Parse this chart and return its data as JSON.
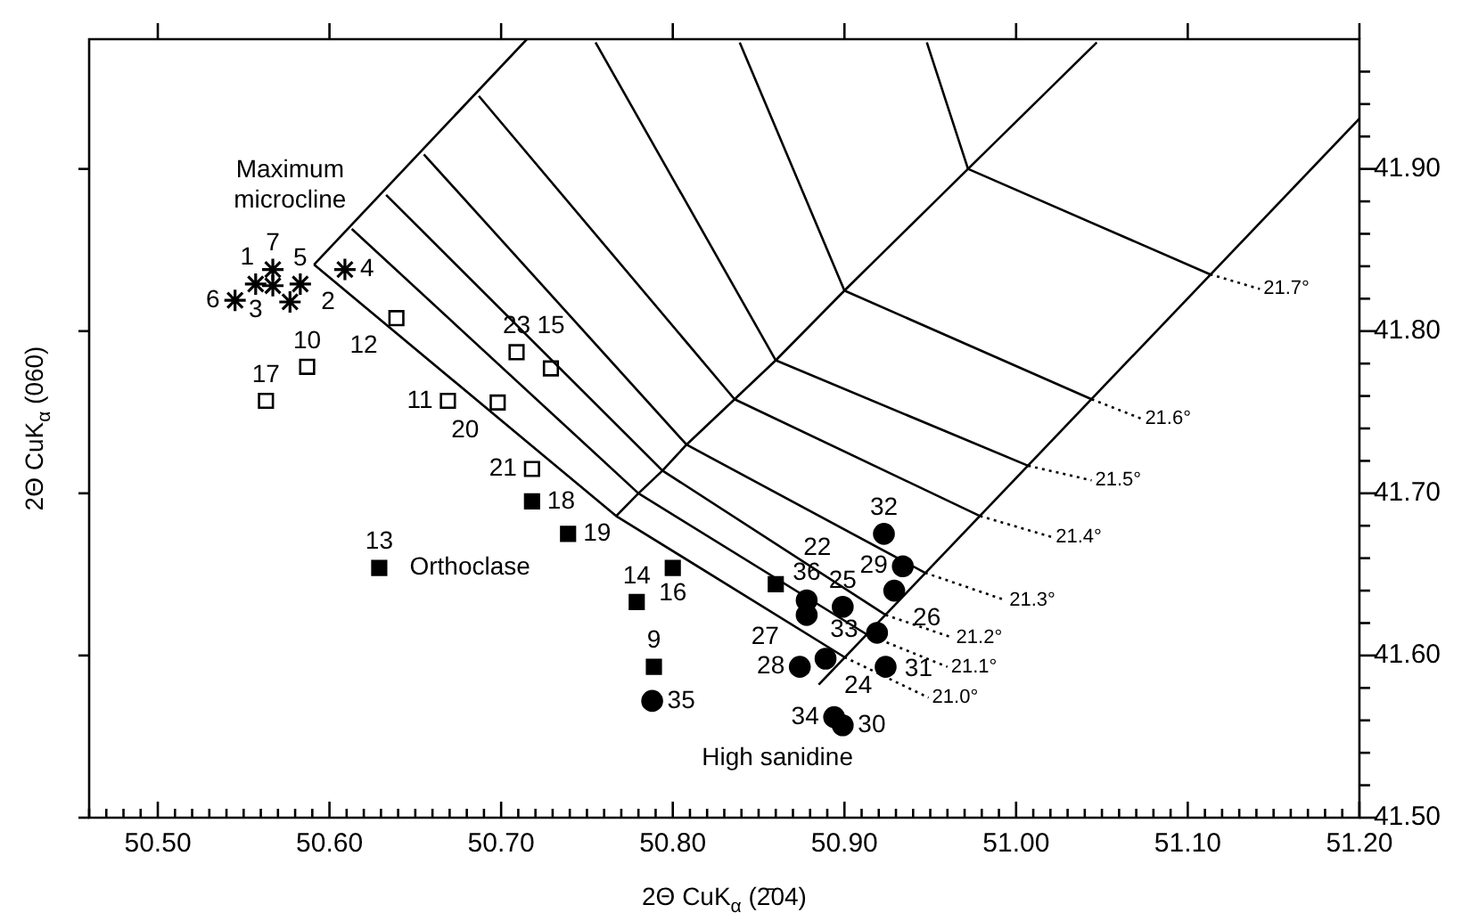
{
  "chart_data": {
    "type": "scatter",
    "xlabel": "2Θ CuK$_{α}$ (2̄04)",
    "ylabel": "2Θ CuK$_{α}$ (060)",
    "xlim": [
      50.46,
      51.2
    ],
    "ylim": [
      41.5,
      41.98
    ],
    "xticks": [
      {
        "value": 50.46,
        "label": null
      },
      {
        "value": 50.47,
        "label": null
      },
      {
        "value": 50.48,
        "label": null
      },
      {
        "value": 50.49,
        "label": null
      },
      {
        "value": 50.5,
        "label": "50.50"
      },
      {
        "value": 50.51,
        "label": null
      },
      {
        "value": 50.52,
        "label": null
      },
      {
        "value": 50.53,
        "label": null
      },
      {
        "value": 50.54,
        "label": null
      },
      {
        "value": 50.55,
        "label": null
      },
      {
        "value": 50.56,
        "label": null
      },
      {
        "value": 50.57,
        "label": null
      },
      {
        "value": 50.58,
        "label": null
      },
      {
        "value": 50.59,
        "label": null
      },
      {
        "value": 50.6,
        "label": "50.60"
      },
      {
        "value": 50.61,
        "label": null
      },
      {
        "value": 50.62,
        "label": null
      },
      {
        "value": 50.63,
        "label": null
      },
      {
        "value": 50.64,
        "label": null
      },
      {
        "value": 50.65,
        "label": null
      },
      {
        "value": 50.66,
        "label": null
      },
      {
        "value": 50.67,
        "label": null
      },
      {
        "value": 50.68,
        "label": null
      },
      {
        "value": 50.69,
        "label": null
      },
      {
        "value": 50.7,
        "label": "50.70"
      },
      {
        "value": 50.71,
        "label": null
      },
      {
        "value": 50.72,
        "label": null
      },
      {
        "value": 50.73,
        "label": null
      },
      {
        "value": 50.74,
        "label": null
      },
      {
        "value": 50.75,
        "label": null
      },
      {
        "value": 50.76,
        "label": null
      },
      {
        "value": 50.77,
        "label": null
      },
      {
        "value": 50.78,
        "label": null
      },
      {
        "value": 50.79,
        "label": null
      },
      {
        "value": 50.8,
        "label": "50.80"
      },
      {
        "value": 50.81,
        "label": null
      },
      {
        "value": 50.82,
        "label": null
      },
      {
        "value": 50.83,
        "label": null
      },
      {
        "value": 50.84,
        "label": null
      },
      {
        "value": 50.85,
        "label": null
      },
      {
        "value": 50.86,
        "label": null
      },
      {
        "value": 50.87,
        "label": null
      },
      {
        "value": 50.88,
        "label": null
      },
      {
        "value": 50.89,
        "label": null
      },
      {
        "value": 50.9,
        "label": "50.90"
      },
      {
        "value": 50.91,
        "label": null
      },
      {
        "value": 50.92,
        "label": null
      },
      {
        "value": 50.93,
        "label": null
      },
      {
        "value": 50.94,
        "label": null
      },
      {
        "value": 50.95,
        "label": null
      },
      {
        "value": 50.96,
        "label": null
      },
      {
        "value": 50.97,
        "label": null
      },
      {
        "value": 50.98,
        "label": null
      },
      {
        "value": 50.99,
        "label": null
      },
      {
        "value": 51.0,
        "label": "51.00"
      },
      {
        "value": 51.01,
        "label": null
      },
      {
        "value": 51.02,
        "label": null
      },
      {
        "value": 51.03,
        "label": null
      },
      {
        "value": 51.04,
        "label": null
      },
      {
        "value": 51.05,
        "label": null
      },
      {
        "value": 51.06,
        "label": null
      },
      {
        "value": 51.07,
        "label": null
      },
      {
        "value": 51.08,
        "label": null
      },
      {
        "value": 51.09,
        "label": null
      },
      {
        "value": 51.1,
        "label": "51.10"
      },
      {
        "value": 51.11,
        "label": null
      },
      {
        "value": 51.12,
        "label": null
      },
      {
        "value": 51.13,
        "label": null
      },
      {
        "value": 51.14,
        "label": null
      },
      {
        "value": 51.15,
        "label": null
      },
      {
        "value": 51.16,
        "label": null
      },
      {
        "value": 51.17,
        "label": null
      },
      {
        "value": 51.18,
        "label": null
      },
      {
        "value": 51.19,
        "label": null
      },
      {
        "value": 51.2,
        "label": "51.20"
      }
    ],
    "yticks": [
      {
        "value": 41.5,
        "label": "41.50"
      },
      {
        "value": 41.52,
        "label": null
      },
      {
        "value": 41.54,
        "label": null
      },
      {
        "value": 41.56,
        "label": null
      },
      {
        "value": 41.58,
        "label": null
      },
      {
        "value": 41.6,
        "label": "41.60"
      },
      {
        "value": 41.62,
        "label": null
      },
      {
        "value": 41.64,
        "label": null
      },
      {
        "value": 41.66,
        "label": null
      },
      {
        "value": 41.68,
        "label": null
      },
      {
        "value": 41.7,
        "label": "41.70"
      },
      {
        "value": 41.72,
        "label": null
      },
      {
        "value": 41.74,
        "label": null
      },
      {
        "value": 41.76,
        "label": null
      },
      {
        "value": 41.78,
        "label": null
      },
      {
        "value": 41.8,
        "label": "41.80"
      },
      {
        "value": 41.82,
        "label": null
      },
      {
        "value": 41.84,
        "label": null
      },
      {
        "value": 41.86,
        "label": null
      },
      {
        "value": 41.88,
        "label": null
      },
      {
        "value": 41.9,
        "label": "41.90"
      },
      {
        "value": 41.92,
        "label": null
      },
      {
        "value": 41.94,
        "label": null
      },
      {
        "value": 41.96,
        "label": null
      }
    ],
    "series": [
      {
        "type": "line",
        "color": "#000000",
        "x": [
          50.715,
          50.591
        ],
        "values": [
          41.98,
          41.841
        ]
      },
      {
        "type": "line",
        "color": "#000000",
        "x": [
          50.767,
          50.78,
          50.794,
          50.808,
          50.836,
          50.86,
          50.9,
          50.972,
          51.047
        ],
        "values": [
          41.686,
          41.7,
          41.714,
          41.73,
          41.758,
          41.782,
          41.825,
          41.9,
          41.978
        ]
      },
      {
        "type": "line",
        "color": "#000000",
        "x": [
          50.885,
          51.2
        ],
        "values": [
          41.582,
          41.931
        ]
      },
      {
        "type": "line",
        "color": "#000000",
        "x": [
          50.948,
          50.972,
          51.113
        ],
        "values": [
          41.978,
          41.9,
          41.835
        ]
      },
      {
        "type": "line",
        "color": "#000000",
        "x": [
          50.839,
          50.9,
          51.044
        ],
        "values": [
          41.978,
          41.825,
          41.758
        ]
      },
      {
        "type": "line",
        "color": "#000000",
        "x": [
          50.755,
          50.86,
          51.007
        ],
        "values": [
          41.978,
          41.782,
          41.717
        ]
      },
      {
        "type": "line",
        "color": "#000000",
        "x": [
          50.687,
          50.836,
          50.979
        ],
        "values": [
          41.945,
          41.758,
          41.686
        ]
      },
      {
        "type": "line",
        "color": "#000000",
        "x": [
          50.655,
          50.808,
          50.947
        ],
        "values": [
          41.909,
          41.73,
          41.651
        ]
      },
      {
        "type": "line",
        "color": "#000000",
        "x": [
          50.633,
          50.794,
          50.924
        ],
        "values": [
          41.884,
          41.714,
          41.625
        ]
      },
      {
        "type": "line",
        "color": "#000000",
        "x": [
          50.613,
          50.78,
          50.913
        ],
        "values": [
          41.863,
          41.7,
          41.613
        ]
      },
      {
        "type": "line",
        "color": "#000000",
        "x": [
          50.591,
          50.767,
          50.9
        ],
        "values": [
          41.841,
          41.686,
          41.599
        ]
      },
      {
        "type": "line",
        "line_style": "dotted",
        "name": "21.7°",
        "color": "#000000",
        "x": [
          51.113,
          51.142
        ],
        "values": [
          41.835,
          41.826
        ]
      },
      {
        "type": "line",
        "line_style": "dotted",
        "name": "21.6°",
        "color": "#000000",
        "x": [
          51.044,
          51.073
        ],
        "values": [
          41.758,
          41.746
        ]
      },
      {
        "type": "line",
        "line_style": "dotted",
        "name": "21.5°",
        "color": "#000000",
        "x": [
          51.007,
          51.044
        ],
        "values": [
          41.717,
          41.708
        ]
      },
      {
        "type": "line",
        "line_style": "dotted",
        "name": "21.4°",
        "color": "#000000",
        "x": [
          50.979,
          51.021
        ],
        "values": [
          41.686,
          41.673
        ]
      },
      {
        "type": "line",
        "line_style": "dotted",
        "name": "21.3°",
        "color": "#000000",
        "x": [
          50.947,
          50.994
        ],
        "values": [
          41.651,
          41.634
        ]
      },
      {
        "type": "line",
        "line_style": "dotted",
        "name": "21.2°",
        "color": "#000000",
        "x": [
          50.924,
          50.963
        ],
        "values": [
          41.625,
          41.611
        ]
      },
      {
        "type": "line",
        "line_style": "dotted",
        "name": "21.1°",
        "color": "#000000",
        "x": [
          50.913,
          50.96
        ],
        "values": [
          41.613,
          41.593
        ]
      },
      {
        "type": "line",
        "line_style": "dotted",
        "name": "21.0°",
        "color": "#000000",
        "x": [
          50.9,
          50.949
        ],
        "values": [
          41.599,
          41.574
        ]
      },
      {
        "name": "Maximum microcline",
        "marker": "cross",
        "color": "#000000",
        "x": [
          50.567,
          50.577,
          50.557,
          50.609,
          50.583,
          50.545,
          50.567
        ],
        "values": [
          41.828,
          41.818,
          41.829,
          41.838,
          41.829,
          41.819,
          41.838
        ]
      },
      {
        "marker": "square",
        "color": "#ffffff",
        "x": [
          50.587,
          50.669,
          50.639,
          50.729,
          50.563,
          50.698,
          50.718,
          50.709
        ],
        "values": [
          41.778,
          41.757,
          41.808,
          41.777,
          41.757,
          41.756,
          41.715,
          41.787
        ]
      },
      {
        "name": "Orthoclase",
        "marker": "square",
        "color": "#000000",
        "x": [
          50.629,
          50.789,
          50.779,
          50.8,
          50.718,
          50.739,
          50.86
        ],
        "values": [
          41.654,
          41.593,
          41.633,
          41.654,
          41.695,
          41.675,
          41.644
        ]
      },
      {
        "name": "High sanidine",
        "marker": "circle",
        "color": "#000000",
        "x": [
          50.889,
          50.899,
          50.929,
          50.878,
          50.874,
          50.934,
          50.899,
          50.919,
          50.923,
          50.924,
          50.894,
          50.788,
          50.878
        ],
        "values": [
          41.598,
          41.63,
          41.64,
          41.634,
          41.593,
          41.655,
          41.557,
          41.614,
          41.675,
          41.593,
          41.562,
          41.572,
          41.625
        ]
      }
    ],
    "annotations": [
      {
        "text": "9",
        "x": 50.789,
        "y": 41.593
      },
      {
        "text": "10",
        "x": 50.587,
        "y": 41.778
      },
      {
        "text": "11",
        "x": 50.669,
        "y": 41.757
      },
      {
        "text": "12",
        "x": 50.639,
        "y": 41.808
      },
      {
        "text": "13",
        "x": 50.629,
        "y": 41.654
      },
      {
        "text": "14",
        "x": 50.779,
        "y": 41.633
      },
      {
        "text": "15",
        "x": 50.729,
        "y": 41.777
      },
      {
        "text": "16",
        "x": 50.8,
        "y": 41.654
      },
      {
        "text": "17",
        "x": 50.563,
        "y": 41.757
      },
      {
        "text": "18",
        "x": 50.718,
        "y": 41.695
      },
      {
        "text": "19",
        "x": 50.739,
        "y": 41.675
      },
      {
        "text": "20",
        "x": 50.698,
        "y": 41.756
      },
      {
        "text": "21",
        "x": 50.718,
        "y": 41.715
      },
      {
        "text": "22",
        "x": 50.86,
        "y": 41.644
      },
      {
        "text": "23",
        "x": 50.709,
        "y": 41.787
      },
      {
        "text": "24",
        "x": 50.889,
        "y": 41.598
      },
      {
        "text": "25",
        "x": 50.899,
        "y": 41.63
      },
      {
        "text": "26",
        "x": 50.929,
        "y": 41.64
      },
      {
        "text": "27",
        "x": 50.878,
        "y": 41.634
      },
      {
        "text": "28",
        "x": 50.874,
        "y": 41.593
      },
      {
        "text": "29",
        "x": 50.934,
        "y": 41.655
      },
      {
        "text": "30",
        "x": 50.899,
        "y": 41.557
      },
      {
        "text": "31",
        "x": 50.919,
        "y": 41.614
      },
      {
        "text": "32",
        "x": 50.923,
        "y": 41.675
      },
      {
        "text": "33",
        "x": 50.924,
        "y": 41.593
      },
      {
        "text": "34",
        "x": 50.894,
        "y": 41.562
      },
      {
        "text": "35",
        "x": 50.788,
        "y": 41.572
      },
      {
        "text": "36",
        "x": 50.878,
        "y": 41.625
      },
      {
        "text": "7",
        "x": 50.567,
        "y": 41.838
      },
      {
        "text": "4",
        "x": 50.609,
        "y": 41.838
      },
      {
        "text": "5",
        "x": 50.583,
        "y": 41.829
      },
      {
        "text": "3",
        "x": 50.557,
        "y": 41.829
      },
      {
        "text": "1",
        "x": 50.567,
        "y": 41.828
      },
      {
        "text": "6",
        "x": 50.545,
        "y": 41.819
      },
      {
        "text": "2",
        "x": 50.577,
        "y": 41.818
      }
    ]
  }
}
